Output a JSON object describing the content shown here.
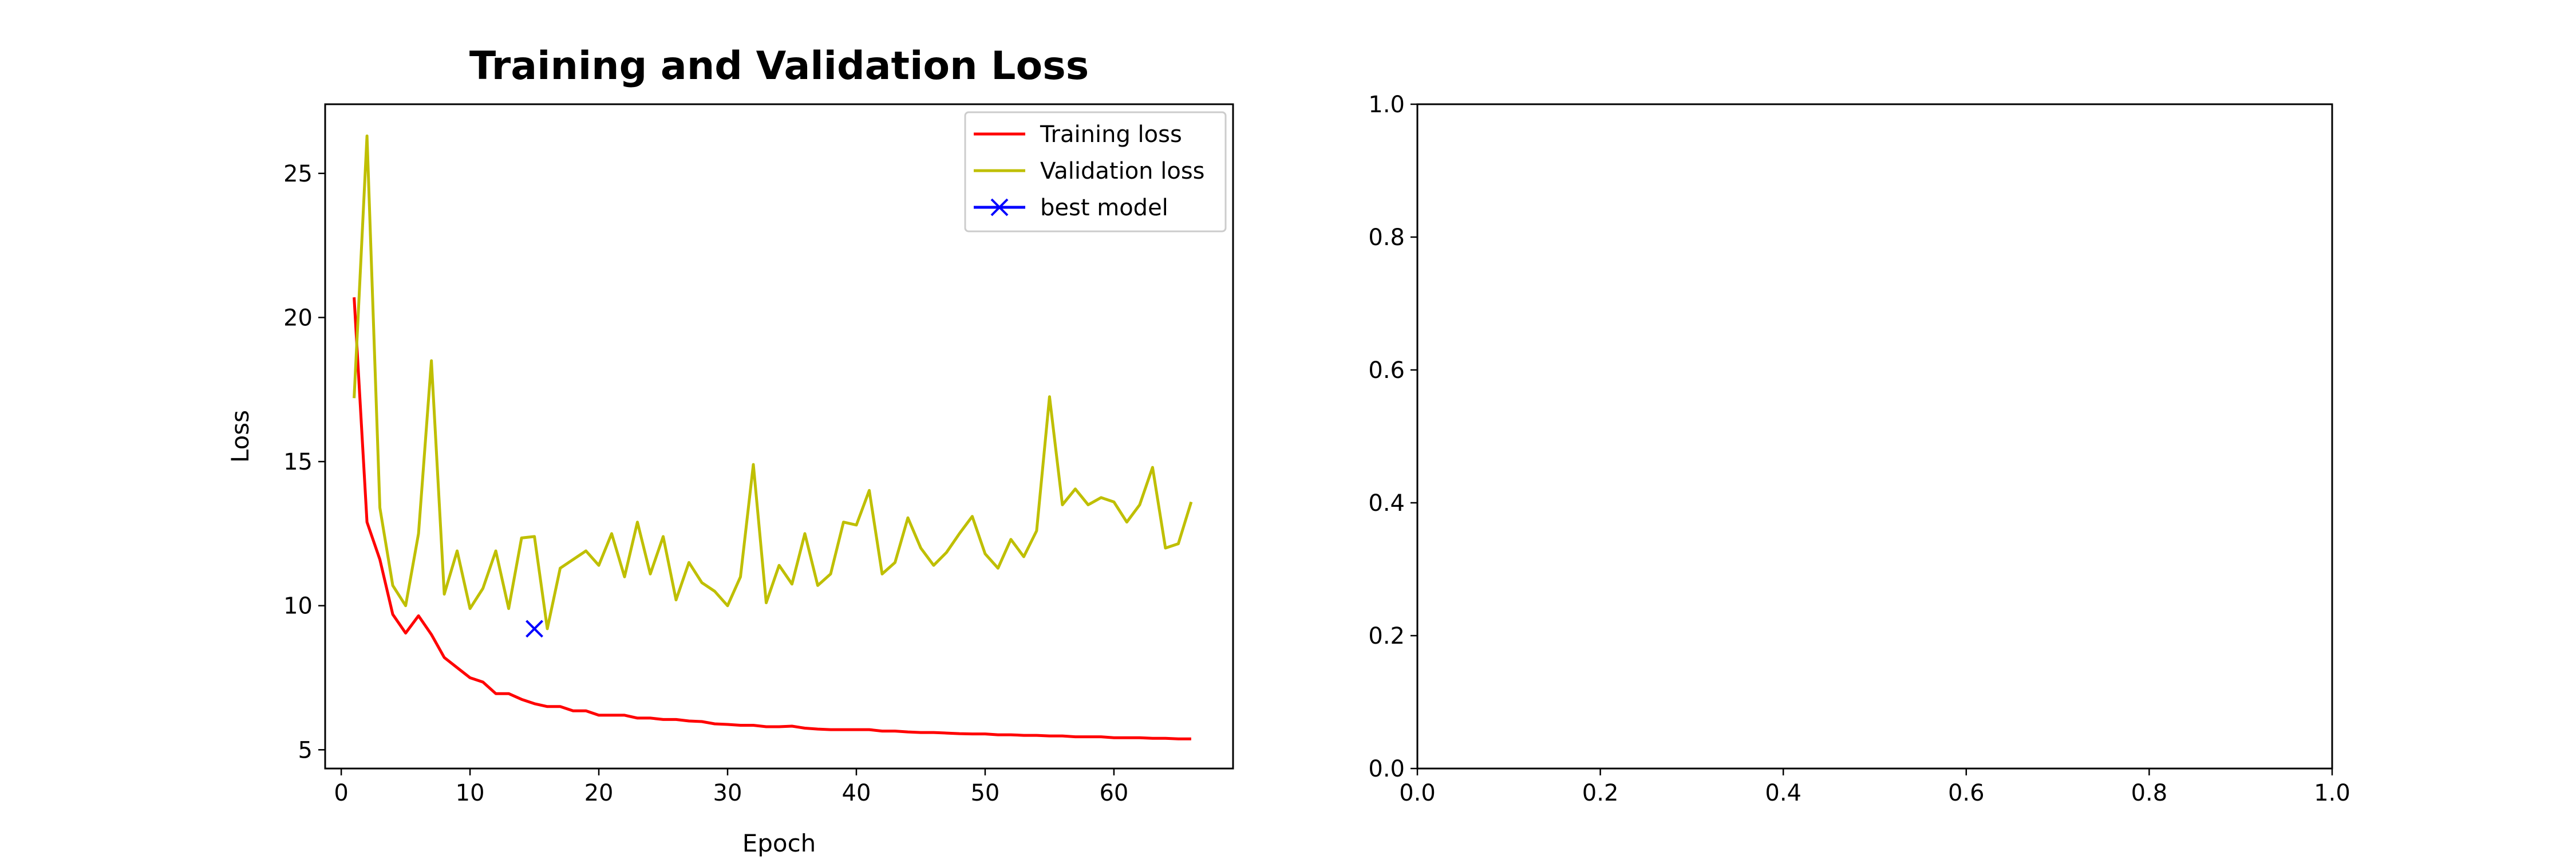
{
  "chart_data": [
    {
      "type": "line",
      "title": "Training and Validation Loss",
      "xlabel": "Epoch",
      "ylabel": "Loss",
      "xlim": [
        -1.25,
        69.25
      ],
      "ylim": [
        4.35,
        27.4
      ],
      "xticks": [
        0,
        10,
        20,
        30,
        40,
        50,
        60
      ],
      "yticks": [
        5,
        10,
        15,
        20,
        25
      ],
      "grid": false,
      "legend_position": "upper right",
      "series": [
        {
          "name": "Training loss",
          "color": "#ff0000",
          "marker": "none",
          "x": [
            1,
            2,
            3,
            4,
            5,
            6,
            7,
            8,
            9,
            10,
            11,
            12,
            13,
            14,
            15,
            16,
            17,
            18,
            19,
            20,
            21,
            22,
            23,
            24,
            25,
            26,
            27,
            28,
            29,
            30,
            31,
            32,
            33,
            34,
            35,
            36,
            37,
            38,
            39,
            40,
            41,
            42,
            43,
            44,
            45,
            46,
            47,
            48,
            49,
            50,
            51,
            52,
            53,
            54,
            55,
            56,
            57,
            58,
            59,
            60,
            61,
            62,
            63,
            64,
            65,
            66
          ],
          "y": [
            20.7,
            12.9,
            11.6,
            9.7,
            9.05,
            9.65,
            9.0,
            8.2,
            7.85,
            7.5,
            7.35,
            6.95,
            6.95,
            6.75,
            6.6,
            6.5,
            6.5,
            6.35,
            6.35,
            6.2,
            6.2,
            6.2,
            6.1,
            6.1,
            6.05,
            6.05,
            6.0,
            5.98,
            5.9,
            5.88,
            5.85,
            5.85,
            5.8,
            5.8,
            5.82,
            5.75,
            5.72,
            5.7,
            5.7,
            5.7,
            5.7,
            5.65,
            5.65,
            5.62,
            5.6,
            5.6,
            5.58,
            5.56,
            5.55,
            5.55,
            5.52,
            5.52,
            5.5,
            5.5,
            5.48,
            5.48,
            5.45,
            5.45,
            5.45,
            5.42,
            5.42,
            5.42,
            5.4,
            5.4,
            5.38,
            5.38
          ]
        },
        {
          "name": "Validation loss",
          "color": "#bfbf00",
          "marker": "none",
          "x": [
            1,
            2,
            3,
            4,
            5,
            6,
            7,
            8,
            9,
            10,
            11,
            12,
            13,
            14,
            15,
            16,
            17,
            18,
            19,
            20,
            21,
            22,
            23,
            24,
            25,
            26,
            27,
            28,
            29,
            30,
            31,
            32,
            33,
            34,
            35,
            36,
            37,
            38,
            39,
            40,
            41,
            42,
            43,
            44,
            45,
            46,
            47,
            48,
            49,
            50,
            51,
            52,
            53,
            54,
            55,
            56,
            57,
            58,
            59,
            60,
            61,
            62,
            63,
            64,
            65,
            66
          ],
          "y": [
            17.2,
            26.3,
            13.4,
            10.7,
            10.0,
            12.5,
            18.5,
            10.4,
            11.9,
            9.9,
            10.6,
            11.9,
            9.9,
            12.35,
            12.4,
            9.2,
            11.3,
            11.6,
            11.9,
            11.4,
            12.5,
            11.0,
            12.9,
            11.1,
            12.4,
            10.2,
            11.5,
            10.8,
            10.5,
            10.0,
            11.0,
            14.9,
            10.1,
            11.4,
            10.75,
            12.5,
            10.7,
            11.1,
            12.9,
            12.8,
            14.0,
            11.1,
            11.5,
            13.05,
            12.0,
            11.4,
            11.85,
            12.5,
            13.1,
            11.8,
            11.3,
            12.3,
            11.7,
            12.6,
            17.25,
            13.5,
            14.05,
            13.5,
            13.75,
            13.6,
            12.9,
            13.5,
            14.8,
            12.0,
            12.15,
            13.6
          ]
        },
        {
          "name": "best model",
          "color": "#0000ff",
          "marker": "x",
          "x": [
            15
          ],
          "y": [
            9.2
          ]
        }
      ]
    },
    {
      "type": "line",
      "title": "",
      "xlabel": "",
      "ylabel": "",
      "xlim": [
        0.0,
        1.0
      ],
      "ylim": [
        0.0,
        1.0
      ],
      "xticks": [
        "0.0",
        "0.2",
        "0.4",
        "0.6",
        "0.8",
        "1.0"
      ],
      "yticks": [
        "0.0",
        "0.2",
        "0.4",
        "0.6",
        "0.8",
        "1.0"
      ],
      "grid": false,
      "series": []
    }
  ]
}
